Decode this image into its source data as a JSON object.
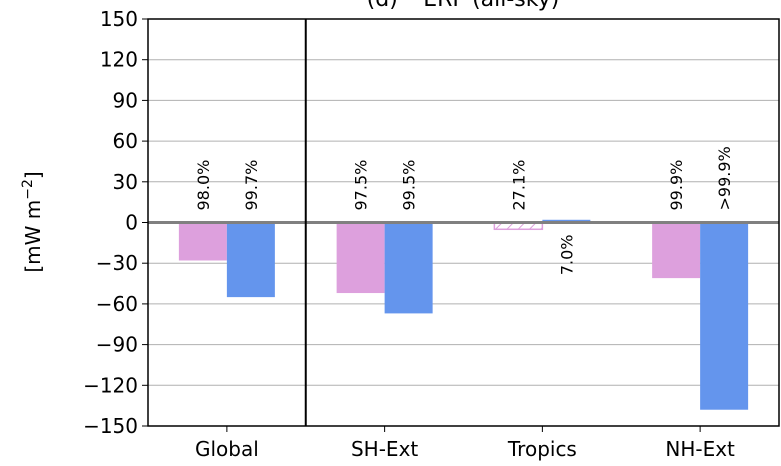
{
  "chart_data": {
    "type": "bar",
    "title": "(d) −ERF (all-sky)",
    "xlabel": "",
    "ylabel_base": "[mW m",
    "ylabel_exp": "−2",
    "ylabel_close": "]",
    "ylim": [
      -150,
      150
    ],
    "yticks": [
      150,
      120,
      90,
      60,
      30,
      0,
      -30,
      -60,
      -90,
      -120,
      -150
    ],
    "ytick_labels": [
      "150",
      "120",
      "90",
      "60",
      "30",
      "0",
      "−30",
      "−60",
      "−90",
      "−120",
      "−150"
    ],
    "grid": true,
    "categories": [
      "Global",
      "SH-Ext",
      "Tropics",
      "NH-Ext"
    ],
    "series": [
      {
        "color": "#dda0dd",
        "values": [
          -28,
          -52,
          -5,
          -41
        ],
        "hatched": [
          false,
          false,
          true,
          false
        ],
        "labels": [
          "98.0%",
          "97.5%",
          "27.1%",
          "99.9%"
        ]
      },
      {
        "color": "#6495ed",
        "values": [
          -55,
          -67,
          2,
          -138
        ],
        "hatched": [
          false,
          false,
          false,
          false
        ],
        "labels": [
          "99.7%",
          "99.5%",
          "7.0%",
          ">99.9%"
        ]
      }
    ]
  }
}
